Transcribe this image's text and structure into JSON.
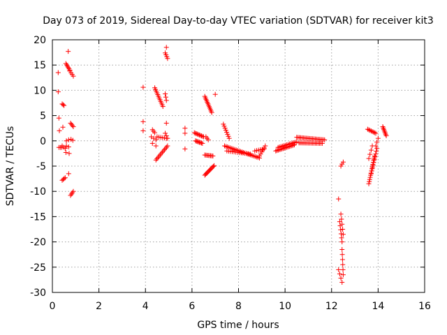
{
  "chart_data": {
    "type": "scatter",
    "title": "Day 073 of 2019, Sidereal Day-to-day VTEC variation (SDTVAR) for receiver kit3",
    "xlabel": "GPS time / hours",
    "ylabel": "SDTVAR / TECUs",
    "xlim": [
      0,
      16
    ],
    "ylim": [
      -30,
      20
    ],
    "x_ticks": [
      "0",
      "2",
      "4",
      "6",
      "8",
      "10",
      "12",
      "14",
      "16"
    ],
    "y_ticks": [
      "20",
      "15",
      "10",
      "5",
      "0",
      "-5",
      "-10",
      "-15",
      "-20",
      "-25",
      "-30"
    ],
    "grid": true,
    "marker": "plus",
    "series": [
      {
        "name": "SDTVAR",
        "color": "#ff0000",
        "segments": [
          [
            0.25,
            13.5,
            0.25,
            13.5,
            1
          ],
          [
            0.25,
            9.7,
            0.25,
            9.7,
            1
          ],
          [
            0.28,
            4.5,
            0.28,
            4.5,
            1
          ],
          [
            0.3,
            2.0,
            0.3,
            2.0,
            1
          ],
          [
            0.28,
            -1.3,
            0.4,
            -1.3,
            3
          ],
          [
            0.42,
            7.3,
            0.5,
            7.0,
            3
          ],
          [
            0.45,
            2.7,
            0.45,
            2.7,
            1
          ],
          [
            0.42,
            -1.0,
            0.55,
            -1.5,
            3
          ],
          [
            0.42,
            -7.8,
            0.55,
            -7.3,
            4
          ],
          [
            0.58,
            15.3,
            0.75,
            14.0,
            6
          ],
          [
            0.68,
            17.7,
            0.68,
            17.7,
            1
          ],
          [
            0.75,
            13.8,
            0.9,
            12.8,
            4
          ],
          [
            0.6,
            0.0,
            0.7,
            0.2,
            2
          ],
          [
            0.6,
            -1.0,
            0.7,
            -1.2,
            2
          ],
          [
            0.58,
            -2.3,
            0.72,
            -2.5,
            2
          ],
          [
            0.7,
            -6.5,
            0.7,
            -6.5,
            1
          ],
          [
            0.78,
            3.5,
            0.9,
            2.8,
            4
          ],
          [
            0.8,
            0.3,
            0.88,
            0.1,
            2
          ],
          [
            0.78,
            -10.8,
            0.9,
            -10.0,
            4
          ],
          [
            3.9,
            10.6,
            3.9,
            10.6,
            1
          ],
          [
            3.9,
            3.8,
            3.9,
            3.8,
            1
          ],
          [
            3.9,
            2.0,
            3.9,
            2.0,
            1
          ],
          [
            4.3,
            2.2,
            4.4,
            1.6,
            3
          ],
          [
            4.25,
            0.8,
            4.45,
            0.2,
            3
          ],
          [
            4.3,
            -0.5,
            4.45,
            -1.0,
            2
          ],
          [
            4.4,
            10.5,
            4.75,
            6.8,
            12
          ],
          [
            4.45,
            -3.8,
            4.95,
            -1.0,
            12
          ],
          [
            4.5,
            0.8,
            4.9,
            0.5,
            6
          ],
          [
            4.85,
            17.4,
            4.95,
            16.3,
            4
          ],
          [
            4.9,
            18.5,
            4.9,
            18.5,
            1
          ],
          [
            4.85,
            9.3,
            4.9,
            8.0,
            3
          ],
          [
            4.9,
            3.5,
            4.9,
            3.5,
            1
          ],
          [
            4.85,
            1.5,
            4.95,
            0.5,
            3
          ],
          [
            5.7,
            2.5,
            5.7,
            2.5,
            1
          ],
          [
            5.7,
            1.5,
            5.7,
            1.5,
            1
          ],
          [
            5.7,
            -1.6,
            5.7,
            -1.6,
            1
          ],
          [
            6.1,
            1.6,
            6.5,
            0.8,
            10
          ],
          [
            6.15,
            0.0,
            6.45,
            -0.5,
            8
          ],
          [
            6.55,
            8.8,
            6.85,
            5.6,
            12
          ],
          [
            6.55,
            -2.8,
            6.9,
            -3.0,
            8
          ],
          [
            6.55,
            -6.8,
            6.95,
            -4.9,
            12
          ],
          [
            6.6,
            0.8,
            6.7,
            0.2,
            3
          ],
          [
            7.0,
            9.2,
            7.0,
            9.2,
            1
          ],
          [
            7.35,
            3.3,
            7.6,
            0.5,
            8
          ],
          [
            7.4,
            -1.0,
            8.9,
            -3.4,
            25
          ],
          [
            7.5,
            -2.0,
            8.5,
            -2.6,
            14
          ],
          [
            8.9,
            -3.0,
            9.15,
            -1.0,
            6
          ],
          [
            8.7,
            -2.0,
            9.1,
            -1.6,
            6
          ],
          [
            9.6,
            -2.0,
            10.4,
            -0.8,
            16
          ],
          [
            9.7,
            -1.3,
            10.5,
            -0.2,
            14
          ],
          [
            10.5,
            0.7,
            11.7,
            0.2,
            22
          ],
          [
            10.6,
            -0.4,
            11.6,
            -0.5,
            18
          ],
          [
            12.3,
            -11.5,
            12.3,
            -11.5,
            1
          ],
          [
            12.35,
            -16.0,
            12.45,
            -20.0,
            6
          ],
          [
            12.3,
            -25.5,
            12.45,
            -28.0,
            4
          ],
          [
            12.4,
            -14.5,
            12.5,
            -18.5,
            5
          ],
          [
            12.45,
            -21.5,
            12.5,
            -26.5,
            6
          ],
          [
            12.4,
            -5.0,
            12.5,
            -4.2,
            3
          ],
          [
            13.55,
            2.3,
            13.9,
            1.5,
            8
          ],
          [
            13.6,
            -8.5,
            13.85,
            -3.0,
            14
          ],
          [
            13.7,
            -6.5,
            13.95,
            -1.5,
            10
          ],
          [
            13.6,
            -3.5,
            13.75,
            -1.0,
            4
          ],
          [
            13.9,
            -1.0,
            14.0,
            0.5,
            3
          ],
          [
            14.2,
            2.8,
            14.35,
            1.0,
            8
          ]
        ]
      }
    ]
  }
}
